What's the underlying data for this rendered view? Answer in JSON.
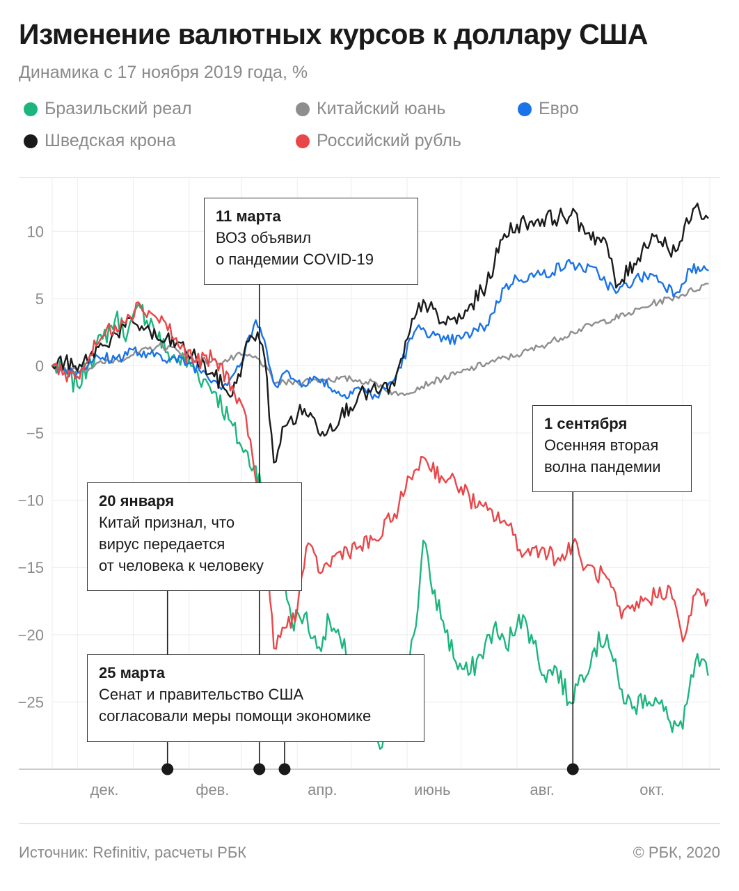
{
  "title": "Изменение валютных курсов к доллару США",
  "subtitle": "Динамика с 17 ноября 2019 года, %",
  "legend": [
    {
      "label": "Бразильский реал",
      "color": "#1db57e"
    },
    {
      "label": "Китайский юань",
      "color": "#8e8e8e"
    },
    {
      "label": "Евро",
      "color": "#1a73e8"
    },
    {
      "label": "Шведская крона",
      "color": "#1a1a1a"
    },
    {
      "label": "Российский рубль",
      "color": "#e8474a"
    }
  ],
  "annotations": [
    {
      "date": "11 марта",
      "text": "ВОЗ объявил\nо пандемии COVID-19"
    },
    {
      "date": "20 января",
      "text": "Китай признал, что\nвирус передается\nот человека к человеку"
    },
    {
      "date": "25 марта",
      "text": "Сенат и правительство США\nсогласовали меры помощи экономике"
    },
    {
      "date": "1 сентября",
      "text": "Осенняя вторая\nволна пандемии"
    }
  ],
  "footer": {
    "source": "Источник: Refinitiv, расчеты РБК",
    "copyright": "© РБК, 2020"
  },
  "chart_data": {
    "type": "line",
    "ylim": [
      -30,
      14
    ],
    "y_ticks": [
      "10",
      "5",
      "0",
      "−5",
      "−10",
      "−15",
      "−20",
      "−25"
    ],
    "y_tick_values": [
      10,
      5,
      0,
      -5,
      -10,
      -15,
      -20,
      -25
    ],
    "x_ticks": [
      "дек.",
      "фев.",
      "апр.",
      "июнь",
      "авг.",
      "окт."
    ],
    "event_dates": [
      "2020-01-20",
      "2020-03-11",
      "2020-03-25",
      "2020-09-01"
    ],
    "grid": true,
    "legend_position": "top",
    "series": [
      {
        "name": "Бразильский реал",
        "color": "#1db57e",
        "points": [
          [
            "2019-11-17",
            0
          ],
          [
            "2019-11-24",
            -0.5
          ],
          [
            "2019-12-01",
            -1.5
          ],
          [
            "2019-12-08",
            0.5
          ],
          [
            "2019-12-15",
            2
          ],
          [
            "2019-12-22",
            3.5
          ],
          [
            "2019-12-29",
            2.5
          ],
          [
            "2020-01-05",
            4.3
          ],
          [
            "2020-01-12",
            3
          ],
          [
            "2020-01-19",
            1
          ],
          [
            "2020-01-26",
            0.5
          ],
          [
            "2020-02-02",
            0
          ],
          [
            "2020-02-09",
            -1
          ],
          [
            "2020-02-16",
            -2
          ],
          [
            "2020-02-23",
            -4
          ],
          [
            "2020-03-01",
            -6
          ],
          [
            "2020-03-08",
            -7.5
          ],
          [
            "2020-03-11",
            -8
          ],
          [
            "2020-03-15",
            -11
          ],
          [
            "2020-03-22",
            -14
          ],
          [
            "2020-03-25",
            -16
          ],
          [
            "2020-03-29",
            -19
          ],
          [
            "2020-04-05",
            -18.5
          ],
          [
            "2020-04-12",
            -21
          ],
          [
            "2020-04-19",
            -19
          ],
          [
            "2020-04-26",
            -21
          ],
          [
            "2020-05-03",
            -22
          ],
          [
            "2020-05-10",
            -25
          ],
          [
            "2020-05-17",
            -28.5
          ],
          [
            "2020-05-24",
            -26
          ],
          [
            "2020-05-31",
            -23
          ],
          [
            "2020-06-07",
            -18
          ],
          [
            "2020-06-10",
            -13
          ],
          [
            "2020-06-14",
            -16
          ],
          [
            "2020-06-21",
            -19
          ],
          [
            "2020-06-28",
            -22
          ],
          [
            "2020-07-05",
            -23
          ],
          [
            "2020-07-12",
            -21.5
          ],
          [
            "2020-07-19",
            -19.5
          ],
          [
            "2020-07-26",
            -21
          ],
          [
            "2020-08-02",
            -18.5
          ],
          [
            "2020-08-09",
            -20
          ],
          [
            "2020-08-16",
            -23
          ],
          [
            "2020-08-23",
            -22.5
          ],
          [
            "2020-08-30",
            -25
          ],
          [
            "2020-09-06",
            -23
          ],
          [
            "2020-09-13",
            -21
          ],
          [
            "2020-09-20",
            -20
          ],
          [
            "2020-09-27",
            -24
          ],
          [
            "2020-10-04",
            -25.5
          ],
          [
            "2020-10-11",
            -24.5
          ],
          [
            "2020-10-18",
            -25
          ],
          [
            "2020-10-25",
            -26.5
          ],
          [
            "2020-11-01",
            -27
          ],
          [
            "2020-11-08",
            -22
          ],
          [
            "2020-11-15",
            -23
          ]
        ]
      },
      {
        "name": "Китайский юань",
        "color": "#8e8e8e",
        "points": [
          [
            "2019-11-17",
            0
          ],
          [
            "2019-12-01",
            -0.4
          ],
          [
            "2019-12-15",
            0.2
          ],
          [
            "2020-01-01",
            0.8
          ],
          [
            "2020-01-15",
            1.5
          ],
          [
            "2020-01-25",
            1.2
          ],
          [
            "2020-02-05",
            0.4
          ],
          [
            "2020-02-20",
            0.3
          ],
          [
            "2020-03-01",
            0.8
          ],
          [
            "2020-03-11",
            0.5
          ],
          [
            "2020-03-20",
            -1.3
          ],
          [
            "2020-04-01",
            -1.2
          ],
          [
            "2020-04-15",
            -1.0
          ],
          [
            "2020-05-01",
            -1.0
          ],
          [
            "2020-05-15",
            -1.3
          ],
          [
            "2020-05-27",
            -2.2
          ],
          [
            "2020-06-15",
            -1.2
          ],
          [
            "2020-07-01",
            -0.5
          ],
          [
            "2020-07-15",
            0.2
          ],
          [
            "2020-08-01",
            0.8
          ],
          [
            "2020-08-15",
            1.5
          ],
          [
            "2020-09-01",
            2.5
          ],
          [
            "2020-09-15",
            3.2
          ],
          [
            "2020-10-01",
            3.8
          ],
          [
            "2020-10-15",
            4.6
          ],
          [
            "2020-11-01",
            5.3
          ],
          [
            "2020-11-15",
            6.1
          ]
        ]
      },
      {
        "name": "Евро",
        "color": "#1a73e8",
        "points": [
          [
            "2019-11-17",
            0
          ],
          [
            "2019-11-24",
            -0.3
          ],
          [
            "2019-12-01",
            -0.5
          ],
          [
            "2019-12-08",
            0.3
          ],
          [
            "2019-12-15",
            0.6
          ],
          [
            "2019-12-22",
            0.5
          ],
          [
            "2020-01-01",
            1.2
          ],
          [
            "2020-01-08",
            0.6
          ],
          [
            "2020-01-15",
            0.9
          ],
          [
            "2020-01-22",
            0.5
          ],
          [
            "2020-02-01",
            0.2
          ],
          [
            "2020-02-10",
            -0.5
          ],
          [
            "2020-02-20",
            -1.5
          ],
          [
            "2020-03-01",
            0.2
          ],
          [
            "2020-03-09",
            3.4
          ],
          [
            "2020-03-15",
            1.2
          ],
          [
            "2020-03-20",
            -1.5
          ],
          [
            "2020-03-25",
            -0.5
          ],
          [
            "2020-04-01",
            -1.2
          ],
          [
            "2020-04-15",
            -1.0
          ],
          [
            "2020-04-25",
            -2.2
          ],
          [
            "2020-05-05",
            -1.6
          ],
          [
            "2020-05-15",
            -2.3
          ],
          [
            "2020-05-25",
            -1.0
          ],
          [
            "2020-06-05",
            2.5
          ],
          [
            "2020-06-10",
            2.8
          ],
          [
            "2020-06-20",
            1.8
          ],
          [
            "2020-07-01",
            2.0
          ],
          [
            "2020-07-15",
            3.0
          ],
          [
            "2020-07-25",
            5.8
          ],
          [
            "2020-08-01",
            6.5
          ],
          [
            "2020-08-15",
            6.8
          ],
          [
            "2020-08-31",
            7.6
          ],
          [
            "2020-09-15",
            6.9
          ],
          [
            "2020-09-25",
            5.4
          ],
          [
            "2020-10-05",
            6.4
          ],
          [
            "2020-10-15",
            6.8
          ],
          [
            "2020-10-28",
            5.4
          ],
          [
            "2020-11-05",
            7.2
          ],
          [
            "2020-11-15",
            7.1
          ]
        ]
      },
      {
        "name": "Шведская крона",
        "color": "#1a1a1a",
        "points": [
          [
            "2019-11-17",
            0
          ],
          [
            "2019-11-24",
            0.3
          ],
          [
            "2019-12-01",
            -0.4
          ],
          [
            "2019-12-08",
            0.8
          ],
          [
            "2019-12-15",
            1.5
          ],
          [
            "2019-12-22",
            2.4
          ],
          [
            "2020-01-01",
            3.2
          ],
          [
            "2020-01-08",
            2.8
          ],
          [
            "2020-01-15",
            1.9
          ],
          [
            "2020-01-25",
            1.7
          ],
          [
            "2020-02-05",
            0.5
          ],
          [
            "2020-02-15",
            -0.8
          ],
          [
            "2020-02-25",
            -2.2
          ],
          [
            "2020-03-05",
            1.8
          ],
          [
            "2020-03-10",
            2.5
          ],
          [
            "2020-03-14",
            0.5
          ],
          [
            "2020-03-19",
            -7.2
          ],
          [
            "2020-03-25",
            -4.5
          ],
          [
            "2020-04-05",
            -3.2
          ],
          [
            "2020-04-15",
            -4.9
          ],
          [
            "2020-04-25",
            -3.8
          ],
          [
            "2020-05-05",
            -2.2
          ],
          [
            "2020-05-15",
            -1.9
          ],
          [
            "2020-05-25",
            -1.5
          ],
          [
            "2020-06-05",
            3.5
          ],
          [
            "2020-06-10",
            4.9
          ],
          [
            "2020-06-20",
            3.2
          ],
          [
            "2020-07-01",
            3.5
          ],
          [
            "2020-07-15",
            6.0
          ],
          [
            "2020-07-25",
            9.8
          ],
          [
            "2020-08-01",
            10.5
          ],
          [
            "2020-08-15",
            10.9
          ],
          [
            "2020-08-31",
            11.2
          ],
          [
            "2020-09-10",
            9.9
          ],
          [
            "2020-09-20",
            9.0
          ],
          [
            "2020-09-25",
            5.8
          ],
          [
            "2020-10-05",
            7.6
          ],
          [
            "2020-10-15",
            9.8
          ],
          [
            "2020-10-28",
            8.5
          ],
          [
            "2020-11-08",
            11.8
          ],
          [
            "2020-11-15",
            11.0
          ]
        ]
      },
      {
        "name": "Российский рубль",
        "color": "#e8474a",
        "points": [
          [
            "2019-11-17",
            0
          ],
          [
            "2019-11-24",
            -0.5
          ],
          [
            "2019-12-01",
            -0.8
          ],
          [
            "2019-12-08",
            0.8
          ],
          [
            "2019-12-15",
            2.2
          ],
          [
            "2019-12-22",
            3.0
          ],
          [
            "2019-12-29",
            3.8
          ],
          [
            "2020-01-05",
            4.5
          ],
          [
            "2020-01-12",
            3.8
          ],
          [
            "2020-01-19",
            3.2
          ],
          [
            "2020-01-26",
            1.5
          ],
          [
            "2020-02-05",
            0.3
          ],
          [
            "2020-02-15",
            0.5
          ],
          [
            "2020-02-25",
            -1.5
          ],
          [
            "2020-03-01",
            -2.8
          ],
          [
            "2020-03-06",
            -5.5
          ],
          [
            "2020-03-09",
            -8.5
          ],
          [
            "2020-03-11",
            -9.5
          ],
          [
            "2020-03-14",
            -13.5
          ],
          [
            "2020-03-17",
            -17.5
          ],
          [
            "2020-03-19",
            -21.0
          ],
          [
            "2020-03-25",
            -19.5
          ],
          [
            "2020-04-01",
            -18.2
          ],
          [
            "2020-04-06",
            -13.5
          ],
          [
            "2020-04-15",
            -15.3
          ],
          [
            "2020-04-25",
            -13.8
          ],
          [
            "2020-05-05",
            -13.5
          ],
          [
            "2020-05-15",
            -13.0
          ],
          [
            "2020-05-25",
            -11.0
          ],
          [
            "2020-06-05",
            -7.8
          ],
          [
            "2020-06-10",
            -6.8
          ],
          [
            "2020-06-20",
            -8.2
          ],
          [
            "2020-07-01",
            -9.0
          ],
          [
            "2020-07-10",
            -10.5
          ],
          [
            "2020-07-25",
            -11.5
          ],
          [
            "2020-08-05",
            -14.0
          ],
          [
            "2020-08-15",
            -13.5
          ],
          [
            "2020-08-25",
            -14.5
          ],
          [
            "2020-09-01",
            -13.2
          ],
          [
            "2020-09-08",
            -15.0
          ],
          [
            "2020-09-20",
            -15.8
          ],
          [
            "2020-09-28",
            -18.8
          ],
          [
            "2020-10-10",
            -17.5
          ],
          [
            "2020-10-25",
            -16.5
          ],
          [
            "2020-11-01",
            -20.5
          ],
          [
            "2020-11-08",
            -17.0
          ],
          [
            "2020-11-15",
            -17.4
          ]
        ]
      }
    ]
  }
}
